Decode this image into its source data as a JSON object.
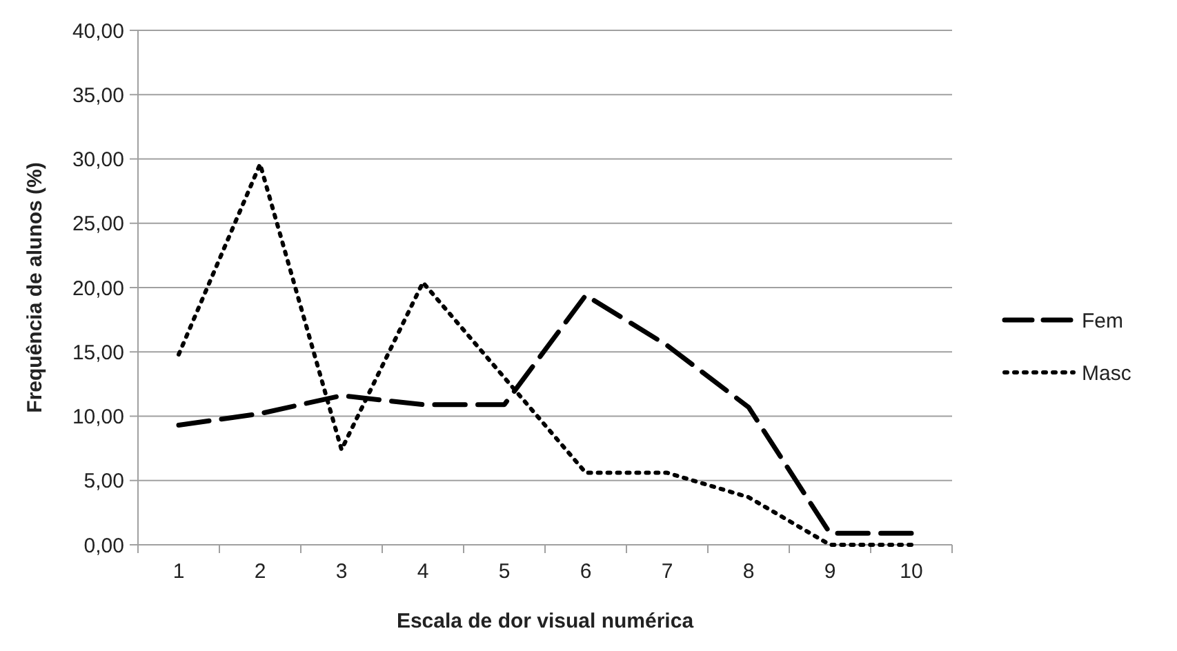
{
  "chart_data": {
    "type": "line",
    "xlabel": "Escala de dor visual numérica",
    "ylabel": "Frequência de alunos (%)",
    "categories": [
      "1",
      "2",
      "3",
      "4",
      "5",
      "6",
      "7",
      "8",
      "9",
      "10"
    ],
    "series": [
      {
        "name": "Fem",
        "color": "#000000",
        "line_style": "dashed",
        "values": [
          9.3,
          10.2,
          11.6,
          10.9,
          10.9,
          19.4,
          15.5,
          10.7,
          0.9,
          0.9
        ]
      },
      {
        "name": "Masc",
        "color": "#000000",
        "line_style": "dotted",
        "values": [
          14.8,
          29.6,
          7.4,
          20.4,
          13.0,
          5.6,
          5.6,
          3.7,
          0,
          0
        ]
      }
    ],
    "ylim": [
      0,
      40
    ],
    "yticks": [
      {
        "value": 0,
        "label": "0,00"
      },
      {
        "value": 5,
        "label": "5,00"
      },
      {
        "value": 10,
        "label": "10,00"
      },
      {
        "value": 15,
        "label": "15,00"
      },
      {
        "value": 20,
        "label": "20,00"
      },
      {
        "value": 25,
        "label": "25,00"
      },
      {
        "value": 30,
        "label": "30,00"
      },
      {
        "value": 35,
        "label": "35,00"
      },
      {
        "value": 40,
        "label": "40,00"
      }
    ],
    "grid": "y",
    "legend": "right",
    "marker": "none"
  }
}
